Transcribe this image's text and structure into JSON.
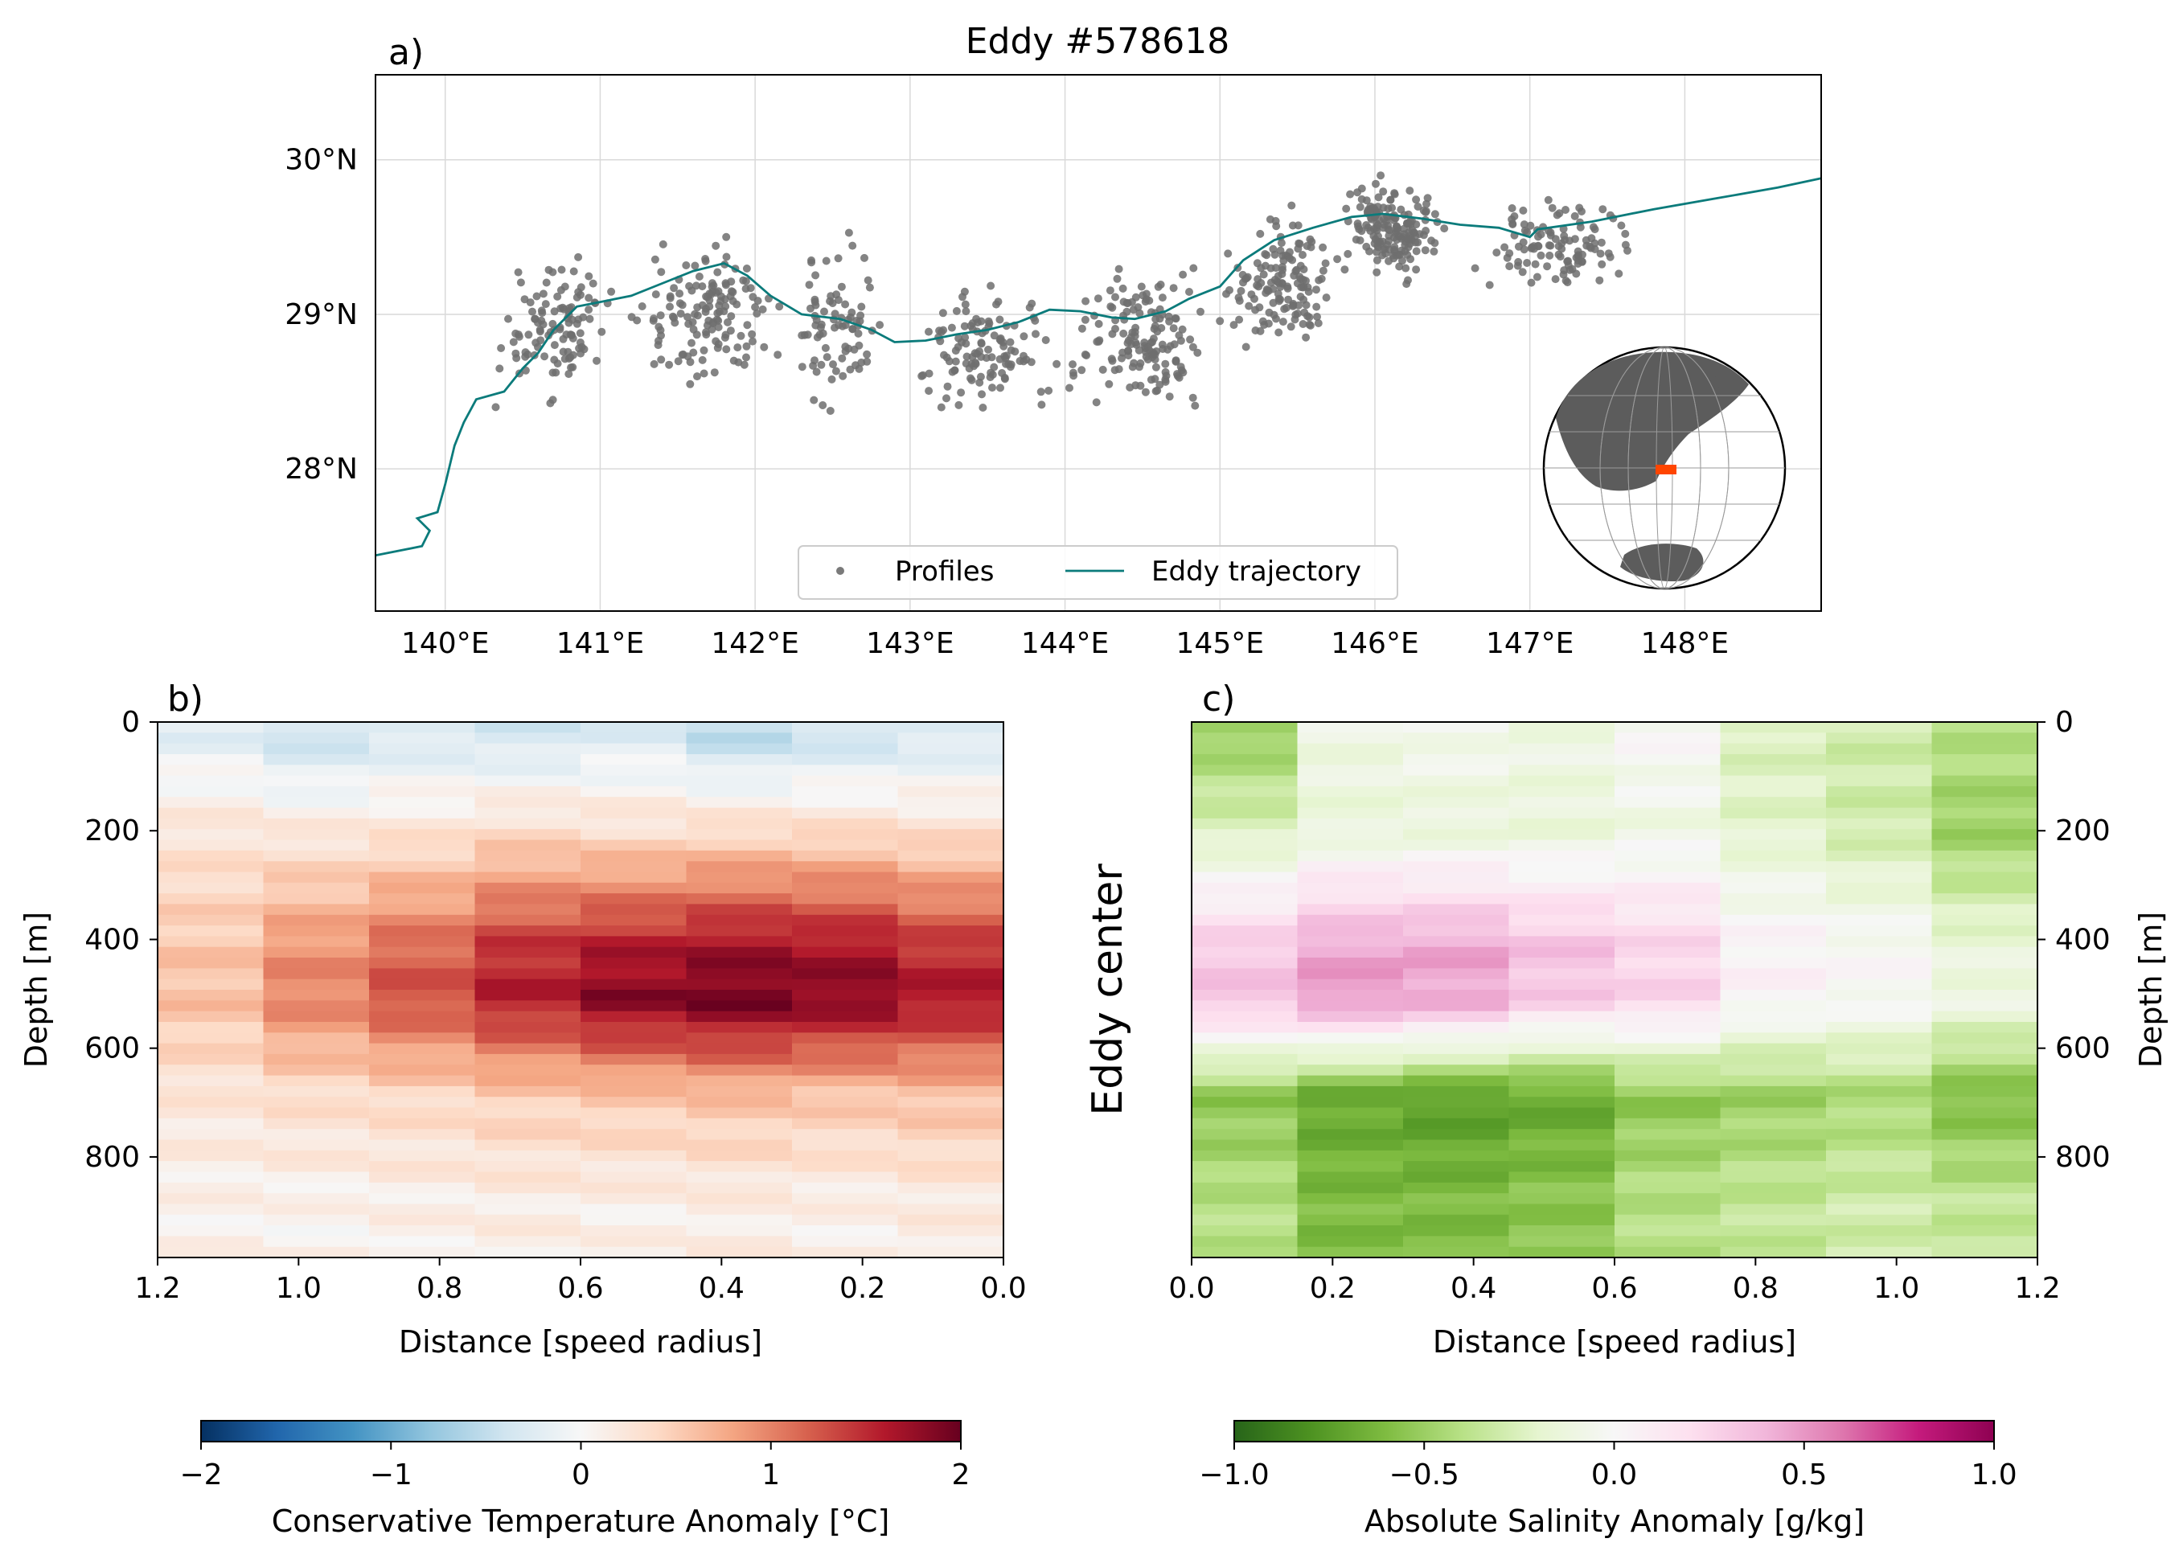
{
  "figure": {
    "title": "Eddy #578618",
    "side_label": "Eddy center"
  },
  "panels": {
    "a": {
      "label": "a)"
    },
    "b": {
      "label": "b)"
    },
    "c": {
      "label": "c)"
    }
  },
  "colors": {
    "trajectory": "#0b7b7b",
    "profiles": "#6f6f6f",
    "land": "#5c5c5c",
    "region_box": "#ff4500"
  },
  "chart_data": [
    {
      "id": "a",
      "type": "scatter",
      "title": "Eddy #578618",
      "xlim": [
        139.55,
        148.88
      ],
      "ylim": [
        27.08,
        30.55
      ],
      "xticks": [
        140,
        141,
        142,
        143,
        144,
        145,
        146,
        147,
        148
      ],
      "xtick_labels": [
        "140°E",
        "141°E",
        "142°E",
        "143°E",
        "144°E",
        "145°E",
        "146°E",
        "147°E",
        "148°E"
      ],
      "yticks": [
        28,
        29,
        30
      ],
      "ytick_labels": [
        "28°N",
        "29°N",
        "30°N"
      ],
      "grid": true,
      "legend": {
        "position": "lower center",
        "entries": [
          "Profiles",
          "Eddy trajectory"
        ]
      },
      "inset": "orthographic globe, upper-right/lower-right corner, red box marking the region",
      "series": [
        {
          "name": "Eddy trajectory",
          "kind": "line",
          "points": [
            [
              139.55,
              27.44
            ],
            [
              139.85,
              27.5
            ],
            [
              139.9,
              27.6
            ],
            [
              139.82,
              27.68
            ],
            [
              139.95,
              27.72
            ],
            [
              140.0,
              27.9
            ],
            [
              140.06,
              28.15
            ],
            [
              140.12,
              28.3
            ],
            [
              140.2,
              28.45
            ],
            [
              140.38,
              28.5
            ],
            [
              140.5,
              28.65
            ],
            [
              140.6,
              28.75
            ],
            [
              140.7,
              28.9
            ],
            [
              140.85,
              29.05
            ],
            [
              141.0,
              29.08
            ],
            [
              141.2,
              29.12
            ],
            [
              141.4,
              29.2
            ],
            [
              141.6,
              29.28
            ],
            [
              141.8,
              29.33
            ],
            [
              141.95,
              29.25
            ],
            [
              142.1,
              29.12
            ],
            [
              142.3,
              29.0
            ],
            [
              142.55,
              28.97
            ],
            [
              142.75,
              28.9
            ],
            [
              142.9,
              28.82
            ],
            [
              143.1,
              28.83
            ],
            [
              143.3,
              28.87
            ],
            [
              143.5,
              28.9
            ],
            [
              143.7,
              28.95
            ],
            [
              143.9,
              29.03
            ],
            [
              144.1,
              29.02
            ],
            [
              144.3,
              28.98
            ],
            [
              144.45,
              28.97
            ],
            [
              144.65,
              29.02
            ],
            [
              144.8,
              29.1
            ],
            [
              145.0,
              29.18
            ],
            [
              145.15,
              29.35
            ],
            [
              145.35,
              29.48
            ],
            [
              145.6,
              29.56
            ],
            [
              145.85,
              29.63
            ],
            [
              146.05,
              29.65
            ],
            [
              146.3,
              29.62
            ],
            [
              146.55,
              29.58
            ],
            [
              146.8,
              29.56
            ],
            [
              147.0,
              29.5
            ],
            [
              147.05,
              29.55
            ],
            [
              147.4,
              29.6
            ],
            [
              147.8,
              29.68
            ],
            [
              148.2,
              29.75
            ],
            [
              148.6,
              29.82
            ],
            [
              148.88,
              29.88
            ]
          ]
        },
        {
          "name": "Profiles",
          "kind": "scatter",
          "clusters": [
            {
              "center": [
                140.7,
                28.9
              ],
              "spread": [
                0.35,
                0.45
              ],
              "count": 110
            },
            {
              "center": [
                141.7,
                29.0
              ],
              "spread": [
                0.45,
                0.45
              ],
              "count": 140
            },
            {
              "center": [
                142.5,
                28.9
              ],
              "spread": [
                0.3,
                0.6
              ],
              "count": 80
            },
            {
              "center": [
                143.5,
                28.75
              ],
              "spread": [
                0.45,
                0.4
              ],
              "count": 120
            },
            {
              "center": [
                144.5,
                28.85
              ],
              "spread": [
                0.45,
                0.45
              ],
              "count": 150
            },
            {
              "center": [
                145.4,
                29.2
              ],
              "spread": [
                0.4,
                0.45
              ],
              "count": 140
            },
            {
              "center": [
                146.1,
                29.55
              ],
              "spread": [
                0.3,
                0.3
              ],
              "count": 170
            },
            {
              "center": [
                147.2,
                29.45
              ],
              "spread": [
                0.5,
                0.3
              ],
              "count": 110
            }
          ]
        }
      ]
    },
    {
      "id": "b",
      "type": "heatmap",
      "xlabel": "Distance [speed radius]",
      "ylabel": "Depth [m]",
      "xlim": [
        1.2,
        0.0
      ],
      "ylim": [
        1000,
        0
      ],
      "xticks": [
        1.2,
        1.0,
        0.8,
        0.6,
        0.4,
        0.2,
        0.0
      ],
      "xtick_labels": [
        "1.2",
        "1.0",
        "0.8",
        "0.6",
        "0.4",
        "0.2",
        "0.0"
      ],
      "yticks": [
        0,
        200,
        400,
        600,
        800
      ],
      "ytick_labels": [
        "0",
        "200",
        "400",
        "600",
        "800"
      ],
      "x_bins": [
        0.0,
        0.15,
        0.3,
        0.45,
        0.6,
        0.75,
        0.9,
        1.05,
        1.2
      ],
      "depth_step": 20,
      "anomaly_profiles": [
        {
          "x": 1.125,
          "a": [
            -0.2,
            0.25,
            0.55,
            0.6,
            0.25,
            0.1
          ]
        },
        {
          "x": 0.975,
          "a": [
            -0.4,
            0.2,
            0.9,
            1.0,
            0.35,
            0.08
          ]
        },
        {
          "x": 0.825,
          "a": [
            -0.3,
            0.25,
            1.15,
            1.3,
            0.4,
            0.12
          ]
        },
        {
          "x": 0.675,
          "a": [
            -0.35,
            0.35,
            1.45,
            1.6,
            0.5,
            0.15
          ]
        },
        {
          "x": 0.525,
          "a": [
            -0.25,
            0.3,
            1.6,
            1.85,
            0.55,
            0.12
          ]
        },
        {
          "x": 0.375,
          "a": [
            -0.5,
            0.35,
            1.7,
            1.95,
            0.6,
            0.15
          ]
        },
        {
          "x": 0.225,
          "a": [
            -0.4,
            0.35,
            1.65,
            1.85,
            0.55,
            0.12
          ]
        },
        {
          "x": 0.075,
          "a": [
            -0.3,
            0.3,
            1.45,
            1.65,
            0.6,
            0.18
          ]
        }
      ],
      "profile_depths": [
        30,
        200,
        420,
        520,
        700,
        900
      ],
      "colorbar": {
        "label": "Conservative Temperature Anomaly [°C]",
        "range": [
          -2,
          2
        ],
        "colormap": "RdBu_r",
        "ticks": [
          -2,
          -1,
          0,
          1,
          2
        ],
        "tick_labels": [
          "−2",
          "−1",
          "0",
          "1",
          "2"
        ]
      }
    },
    {
      "id": "c",
      "type": "heatmap",
      "xlabel": "Distance [speed radius]",
      "ylabel": "Depth [m]",
      "xlim": [
        0.0,
        1.2
      ],
      "ylim": [
        1000,
        0
      ],
      "xticks": [
        0.0,
        0.2,
        0.4,
        0.6,
        0.8,
        1.0,
        1.2
      ],
      "xtick_labels": [
        "0.0",
        "0.2",
        "0.4",
        "0.6",
        "0.8",
        "1.0",
        "1.2"
      ],
      "yticks": [
        0,
        200,
        400,
        600,
        800
      ],
      "ytick_labels": [
        "0",
        "200",
        "400",
        "600",
        "800"
      ],
      "x_bins": [
        0.0,
        0.15,
        0.3,
        0.45,
        0.6,
        0.75,
        0.9,
        1.05,
        1.2
      ],
      "depth_step": 20,
      "anomaly_profiles": [
        {
          "x": 0.075,
          "a": [
            -0.5,
            -0.25,
            0.3,
            0.35,
            -0.55,
            -0.4
          ]
        },
        {
          "x": 0.225,
          "a": [
            -0.1,
            -0.15,
            0.45,
            0.5,
            -0.7,
            -0.6
          ]
        },
        {
          "x": 0.375,
          "a": [
            -0.05,
            -0.15,
            0.45,
            0.45,
            -0.75,
            -0.6
          ]
        },
        {
          "x": 0.525,
          "a": [
            -0.1,
            -0.15,
            0.35,
            0.3,
            -0.7,
            -0.55
          ]
        },
        {
          "x": 0.675,
          "a": [
            0.0,
            -0.1,
            0.25,
            0.25,
            -0.55,
            -0.4
          ]
        },
        {
          "x": 0.825,
          "a": [
            -0.25,
            -0.2,
            0.05,
            0.05,
            -0.5,
            -0.35
          ]
        },
        {
          "x": 0.975,
          "a": [
            -0.3,
            -0.3,
            0.0,
            0.0,
            -0.45,
            -0.3
          ]
        },
        {
          "x": 1.125,
          "a": [
            -0.4,
            -0.5,
            -0.15,
            -0.1,
            -0.6,
            -0.35
          ]
        }
      ],
      "profile_depths": [
        30,
        200,
        420,
        520,
        700,
        900
      ],
      "colorbar": {
        "label": "Absolute Salinity Anomaly [g/kg]",
        "range": [
          -1.0,
          1.0
        ],
        "colormap": "PiYG_r",
        "ticks": [
          -1.0,
          -0.5,
          0.0,
          0.5,
          1.0
        ],
        "tick_labels": [
          "−1.0",
          "−0.5",
          "0.0",
          "0.5",
          "1.0"
        ]
      }
    }
  ]
}
